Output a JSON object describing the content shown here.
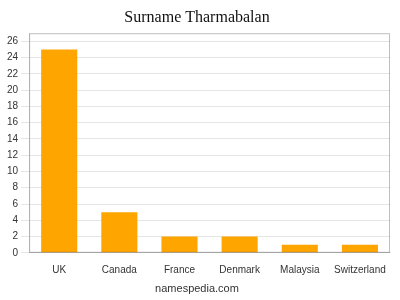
{
  "chart_data": {
    "type": "bar",
    "title": "Surname Tharmabalan",
    "annotations": [
      "namespedia.com"
    ],
    "categories": [
      "UK",
      "Canada",
      "France",
      "Denmark",
      "Malaysia",
      "Switzerland"
    ],
    "values": [
      25,
      5,
      2,
      2,
      1,
      1
    ],
    "color": "#FFA500",
    "ylim": [
      0,
      27
    ],
    "yticks": [
      0,
      2,
      4,
      6,
      8,
      10,
      12,
      14,
      16,
      18,
      20,
      22,
      24,
      26
    ],
    "grid": true
  }
}
